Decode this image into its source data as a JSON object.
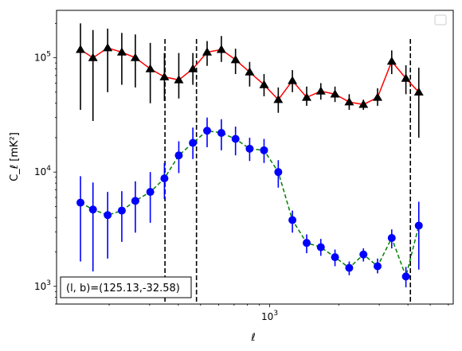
{
  "chart_data": {
    "type": "line",
    "xlabel": "ℓ",
    "ylabel": "C_ℓ [mK²]",
    "xscale": "log",
    "yscale": "log",
    "xlim": [
      118,
      6300
    ],
    "ylim": [
      700,
      260000
    ],
    "x_tick_labels": [
      {
        "value": 1000,
        "base": "10",
        "exp": "3"
      }
    ],
    "y_tick_labels": [
      {
        "value": 1000,
        "base": "10",
        "exp": "3"
      },
      {
        "value": 10000,
        "base": "10",
        "exp": "4"
      },
      {
        "value": 100000,
        "base": "10",
        "exp": "5"
      }
    ],
    "vlines": [
      350,
      480,
      4100
    ],
    "annotation": "(l, b)=(125.13,-32.58)",
    "legend": "upper right (empty)",
    "grid": false,
    "series": [
      {
        "color": "#ff0000",
        "style": "solid",
        "marker": "triangle",
        "marker_color": "#000000",
        "points": [
          {
            "x": 150,
            "y": 118000,
            "lo": 35000,
            "hi": 200000
          },
          {
            "x": 170,
            "y": 100000,
            "lo": 28000,
            "hi": 175000
          },
          {
            "x": 197,
            "y": 122000,
            "lo": 50000,
            "hi": 180000
          },
          {
            "x": 227,
            "y": 112000,
            "lo": 58000,
            "hi": 165000
          },
          {
            "x": 260,
            "y": 100000,
            "lo": 55000,
            "hi": 160000
          },
          {
            "x": 302,
            "y": 80000,
            "lo": 40000,
            "hi": 135000
          },
          {
            "x": 348,
            "y": 68000,
            "lo": 42000,
            "hi": 110000
          },
          {
            "x": 402,
            "y": 64000,
            "lo": 44000,
            "hi": 110000
          },
          {
            "x": 463,
            "y": 80000,
            "lo": 58000,
            "hi": 110000
          },
          {
            "x": 534,
            "y": 112000,
            "lo": 85000,
            "hi": 140000
          },
          {
            "x": 616,
            "y": 118000,
            "lo": 92000,
            "hi": 155000
          },
          {
            "x": 710,
            "y": 96000,
            "lo": 72000,
            "hi": 120000
          },
          {
            "x": 818,
            "y": 75000,
            "lo": 56000,
            "hi": 92000
          },
          {
            "x": 945,
            "y": 58000,
            "lo": 46000,
            "hi": 72000
          },
          {
            "x": 1090,
            "y": 43000,
            "lo": 33000,
            "hi": 55000
          },
          {
            "x": 1256,
            "y": 63000,
            "lo": 50000,
            "hi": 78000
          },
          {
            "x": 1449,
            "y": 45000,
            "lo": 38000,
            "hi": 56000
          },
          {
            "x": 1670,
            "y": 51000,
            "lo": 43000,
            "hi": 60000
          },
          {
            "x": 1925,
            "y": 48000,
            "lo": 41000,
            "hi": 56000
          },
          {
            "x": 2220,
            "y": 41000,
            "lo": 35000,
            "hi": 48000
          },
          {
            "x": 2560,
            "y": 39000,
            "lo": 35000,
            "hi": 43000
          },
          {
            "x": 2950,
            "y": 45000,
            "lo": 38000,
            "hi": 54000
          },
          {
            "x": 3400,
            "y": 93000,
            "lo": 72000,
            "hi": 116000
          },
          {
            "x": 3920,
            "y": 66000,
            "lo": 48000,
            "hi": 86000
          },
          {
            "x": 4460,
            "y": 50000,
            "lo": 20000,
            "hi": 82000
          }
        ]
      },
      {
        "color": "#008000",
        "style": "dashed",
        "marker": "circle",
        "marker_color": "#0000ff",
        "points": [
          {
            "x": 150,
            "y": 5400,
            "lo": 1650,
            "hi": 9200
          },
          {
            "x": 170,
            "y": 4700,
            "lo": 1350,
            "hi": 8100
          },
          {
            "x": 197,
            "y": 4200,
            "lo": 1750,
            "hi": 6700
          },
          {
            "x": 227,
            "y": 4600,
            "lo": 2450,
            "hi": 6800
          },
          {
            "x": 260,
            "y": 5600,
            "lo": 2950,
            "hi": 8300
          },
          {
            "x": 302,
            "y": 6700,
            "lo": 3600,
            "hi": 10000
          },
          {
            "x": 348,
            "y": 8800,
            "lo": 5800,
            "hi": 12000
          },
          {
            "x": 402,
            "y": 14000,
            "lo": 9800,
            "hi": 18600
          },
          {
            "x": 463,
            "y": 18000,
            "lo": 13000,
            "hi": 24500
          },
          {
            "x": 534,
            "y": 23000,
            "lo": 16500,
            "hi": 30000
          },
          {
            "x": 616,
            "y": 22000,
            "lo": 15500,
            "hi": 29000
          },
          {
            "x": 710,
            "y": 19500,
            "lo": 14000,
            "hi": 25000
          },
          {
            "x": 818,
            "y": 16000,
            "lo": 12500,
            "hi": 20000
          },
          {
            "x": 945,
            "y": 15500,
            "lo": 12000,
            "hi": 19500
          },
          {
            "x": 1090,
            "y": 10000,
            "lo": 7300,
            "hi": 12700
          },
          {
            "x": 1256,
            "y": 3800,
            "lo": 2950,
            "hi": 4600
          },
          {
            "x": 1449,
            "y": 2400,
            "lo": 1950,
            "hi": 2850
          },
          {
            "x": 1670,
            "y": 2200,
            "lo": 1850,
            "hi": 2600
          },
          {
            "x": 1925,
            "y": 1800,
            "lo": 1500,
            "hi": 2100
          },
          {
            "x": 2220,
            "y": 1450,
            "lo": 1250,
            "hi": 1650
          },
          {
            "x": 2560,
            "y": 1900,
            "lo": 1650,
            "hi": 2150
          },
          {
            "x": 2950,
            "y": 1500,
            "lo": 1300,
            "hi": 1750
          },
          {
            "x": 3400,
            "y": 2650,
            "lo": 2150,
            "hi": 3150
          },
          {
            "x": 3920,
            "y": 1220,
            "lo": 980,
            "hi": 1480
          },
          {
            "x": 4460,
            "y": 3400,
            "lo": 1400,
            "hi": 5500
          }
        ]
      }
    ]
  }
}
